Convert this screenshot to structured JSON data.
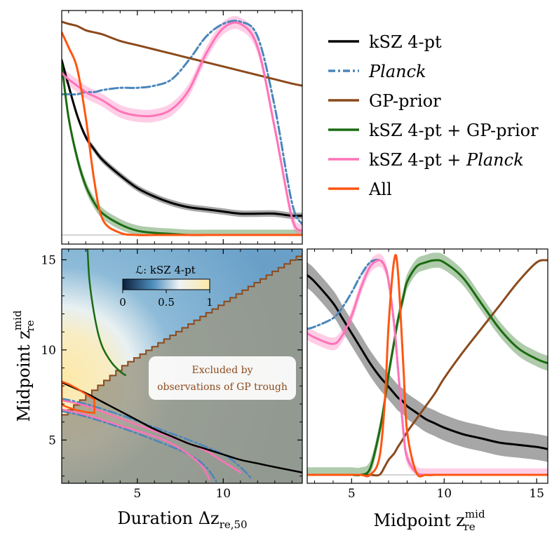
{
  "chart_data": {
    "type": "corner-plot",
    "legend": {
      "entries": [
        {
          "key": "ksz",
          "label": "kSZ 4-pt",
          "italic": "",
          "color": "#000000",
          "dash": "solid"
        },
        {
          "key": "planck",
          "label": "",
          "italic": "Planck",
          "color": "#4a86bb",
          "dash": "dashdot"
        },
        {
          "key": "gp",
          "label": "GP-prior",
          "italic": "",
          "color": "#8b4a1c",
          "dash": "solid"
        },
        {
          "key": "ksz_gp",
          "label": "kSZ 4-pt + GP-prior",
          "italic": "",
          "color": "#1a6b10",
          "dash": "solid"
        },
        {
          "key": "ksz_planck",
          "label": "kSZ 4-pt + ",
          "italic": "Planck",
          "color": "#ff73b8",
          "dash": "solid"
        },
        {
          "key": "all",
          "label": "All",
          "italic": "",
          "color": "#ff5511",
          "dash": "solid"
        }
      ]
    },
    "duration_axis": {
      "label": "Duration Δz",
      "label_sub": "re,50",
      "range": [
        0.6,
        14.6
      ],
      "ticks": [
        5,
        10
      ],
      "tick_labels": [
        "5",
        "10"
      ]
    },
    "midpoint_axis": {
      "label": "Midpoint z",
      "label_sub": "re",
      "label_sup": "mid",
      "range": [
        2.6,
        15.6
      ],
      "ticks": [
        5,
        10,
        15
      ],
      "tick_labels": [
        "5",
        "10",
        "15"
      ]
    },
    "colorbar": {
      "title": "ℒ: kSZ 4-pt",
      "ticks": [
        0,
        0.5,
        1
      ],
      "tick_labels": [
        "0",
        "0.5",
        "1"
      ],
      "colors": [
        "#0c1f3a",
        "#4f8fbf",
        "#eef3f5",
        "#fde9a7"
      ]
    },
    "annotation": {
      "line1": "Excluded by",
      "line2": "observations of GP trough"
    },
    "top_panel_duration_marginals": {
      "x": [
        0.6,
        1.0,
        1.5,
        2.0,
        2.5,
        3.0,
        4.0,
        5.0,
        6.0,
        7.0,
        8.0,
        9.0,
        10.0,
        11.0,
        12.0,
        13.0,
        14.0,
        14.6
      ],
      "series": [
        {
          "key": "ksz",
          "values": [
            0.82,
            0.7,
            0.56,
            0.46,
            0.4,
            0.35,
            0.28,
            0.22,
            0.18,
            0.15,
            0.13,
            0.12,
            0.11,
            0.1,
            0.1,
            0.1,
            0.09,
            0.09
          ],
          "band": 0.015
        },
        {
          "key": "planck",
          "values": [
            0.66,
            0.66,
            0.66,
            0.67,
            0.67,
            0.68,
            0.69,
            0.69,
            0.7,
            0.73,
            0.82,
            0.93,
            0.99,
            1.0,
            0.93,
            0.6,
            0.15,
            0.05
          ]
        },
        {
          "key": "gp",
          "values": [
            1.0,
            0.99,
            0.98,
            0.96,
            0.95,
            0.94,
            0.91,
            0.89,
            0.87,
            0.85,
            0.83,
            0.81,
            0.79,
            0.77,
            0.75,
            0.73,
            0.71,
            0.7
          ]
        },
        {
          "key": "ksz_gp",
          "values": [
            0.8,
            0.55,
            0.36,
            0.23,
            0.15,
            0.1,
            0.05,
            0.02,
            0.01,
            0.005,
            0.0,
            0.0,
            0.0,
            0.0,
            0.0,
            0.0,
            0.0,
            0.0
          ],
          "band": 0.025
        },
        {
          "key": "ksz_planck",
          "values": [
            0.76,
            0.73,
            0.7,
            0.67,
            0.65,
            0.63,
            0.58,
            0.56,
            0.56,
            0.59,
            0.68,
            0.85,
            0.97,
            0.99,
            0.88,
            0.5,
            0.08,
            0.02
          ],
          "band": 0.03
        },
        {
          "key": "all",
          "values": [
            0.95,
            0.88,
            0.78,
            0.55,
            0.25,
            0.07,
            0.01,
            0.0,
            0.0,
            0.0,
            0.0,
            0.0,
            0.0,
            0.0,
            0.0,
            0.0,
            0.0,
            0.0
          ]
        }
      ]
    },
    "right_panel_midpoint_marginals": {
      "x": [
        2.6,
        3.0,
        4.0,
        4.5,
        5.0,
        5.5,
        6.0,
        6.5,
        6.8,
        7.0,
        7.3,
        7.5,
        7.8,
        8.0,
        8.5,
        9.0,
        9.5,
        10.0,
        11.0,
        12.0,
        13.0,
        14.0,
        15.0,
        15.6
      ],
      "series": [
        {
          "key": "ksz",
          "values": [
            0.93,
            0.9,
            0.8,
            0.73,
            0.66,
            0.59,
            0.52,
            0.46,
            0.43,
            0.41,
            0.38,
            0.36,
            0.34,
            0.32,
            0.29,
            0.26,
            0.24,
            0.22,
            0.19,
            0.17,
            0.15,
            0.14,
            0.13,
            0.12
          ],
          "band": 0.06
        },
        {
          "key": "planck",
          "values": [
            0.68,
            0.69,
            0.73,
            0.78,
            0.85,
            0.93,
            0.99,
            1.0,
            0.97,
            0.9,
            0.7,
            0.5,
            0.2,
            0.08,
            0.01,
            0.0,
            0.0,
            0.0,
            0.0,
            0.0,
            0.0,
            0.0,
            0.0,
            0.0
          ]
        },
        {
          "key": "gp",
          "values": [
            0.0,
            0.0,
            0.0,
            0.0,
            0.0,
            0.0,
            0.0,
            0.0,
            0.04,
            0.07,
            0.1,
            0.13,
            0.17,
            0.2,
            0.26,
            0.32,
            0.38,
            0.45,
            0.57,
            0.68,
            0.79,
            0.9,
            0.99,
            1.0
          ]
        },
        {
          "key": "ksz_gp",
          "values": [
            0.0,
            0.0,
            0.0,
            0.0,
            0.0,
            0.0,
            0.03,
            0.2,
            0.35,
            0.47,
            0.62,
            0.72,
            0.83,
            0.9,
            0.97,
            0.99,
            1.0,
            0.99,
            0.92,
            0.8,
            0.68,
            0.59,
            0.54,
            0.52
          ],
          "band": 0.035
        },
        {
          "key": "ksz_planck",
          "values": [
            0.66,
            0.64,
            0.61,
            0.65,
            0.74,
            0.87,
            0.97,
            1.0,
            0.97,
            0.9,
            0.7,
            0.5,
            0.2,
            0.08,
            0.01,
            0.0,
            0.0,
            0.0,
            0.0,
            0.0,
            0.0,
            0.0,
            0.0,
            0.0
          ],
          "band": 0.03
        },
        {
          "key": "all",
          "values": [
            0.0,
            0.0,
            0.0,
            0.0,
            0.0,
            0.0,
            0.0,
            0.08,
            0.35,
            0.7,
            1.0,
            0.95,
            0.5,
            0.2,
            0.01,
            0.0,
            0.0,
            0.0,
            0.0,
            0.0,
            0.0,
            0.0,
            0.0,
            0.0
          ]
        }
      ]
    },
    "joint_panel_curves": {
      "gp_boundary": {
        "x": [
          0.6,
          4.2,
          14.6
        ],
        "y": [
          6.4,
          9.2,
          15.4
        ]
      },
      "ksz_gp_contour": {
        "x": [
          2.1,
          2.2,
          2.4,
          2.7,
          3.0,
          3.5,
          4.0,
          4.3
        ],
        "y": [
          15.6,
          14.0,
          12.5,
          11.0,
          10.1,
          9.3,
          8.8,
          8.6
        ]
      },
      "ksz_contour": {
        "x": [
          0.6,
          2.0,
          3.0,
          4.0,
          5.0,
          6.0,
          7.0,
          8.0,
          9.0,
          10.0,
          11.0,
          12.0,
          13.0,
          14.6
        ],
        "y": [
          8.2,
          7.6,
          7.1,
          6.6,
          6.1,
          5.6,
          5.2,
          4.8,
          4.5,
          4.2,
          3.9,
          3.7,
          3.5,
          3.2
        ]
      },
      "all_contour": {
        "x": [
          0.6,
          1.0,
          1.5,
          2.0,
          2.5,
          2.5,
          2.0,
          1.5,
          1.0,
          0.6
        ],
        "y": [
          8.25,
          8.1,
          7.85,
          7.55,
          7.25,
          6.5,
          6.55,
          6.65,
          6.8,
          6.95
        ]
      },
      "planck_contours": [
        {
          "x": [
            0.6,
            2.0,
            4.0,
            6.0,
            8.0,
            10.0,
            11.0,
            11.6
          ],
          "y": [
            7.3,
            7.0,
            6.4,
            5.7,
            5.0,
            4.2,
            3.5,
            2.9
          ]
        },
        {
          "x": [
            0.6,
            2.0,
            4.0,
            6.0,
            8.0,
            9.0,
            9.6
          ],
          "y": [
            6.6,
            6.3,
            5.7,
            5.0,
            4.2,
            3.5,
            2.7
          ]
        }
      ],
      "ksz_planck_contours": [
        {
          "x": [
            0.6,
            2.0,
            4.0,
            6.0,
            8.0,
            9.0,
            10.0,
            11.0
          ],
          "y": [
            7.2,
            6.9,
            6.2,
            5.5,
            4.8,
            4.4,
            3.8,
            3.2
          ]
        },
        {
          "x": [
            0.6,
            2.0,
            4.0,
            6.0,
            7.0,
            8.0,
            8.8,
            9.2
          ],
          "y": [
            6.7,
            6.4,
            5.8,
            5.2,
            4.8,
            4.2,
            3.5,
            2.8
          ]
        }
      ]
    }
  }
}
